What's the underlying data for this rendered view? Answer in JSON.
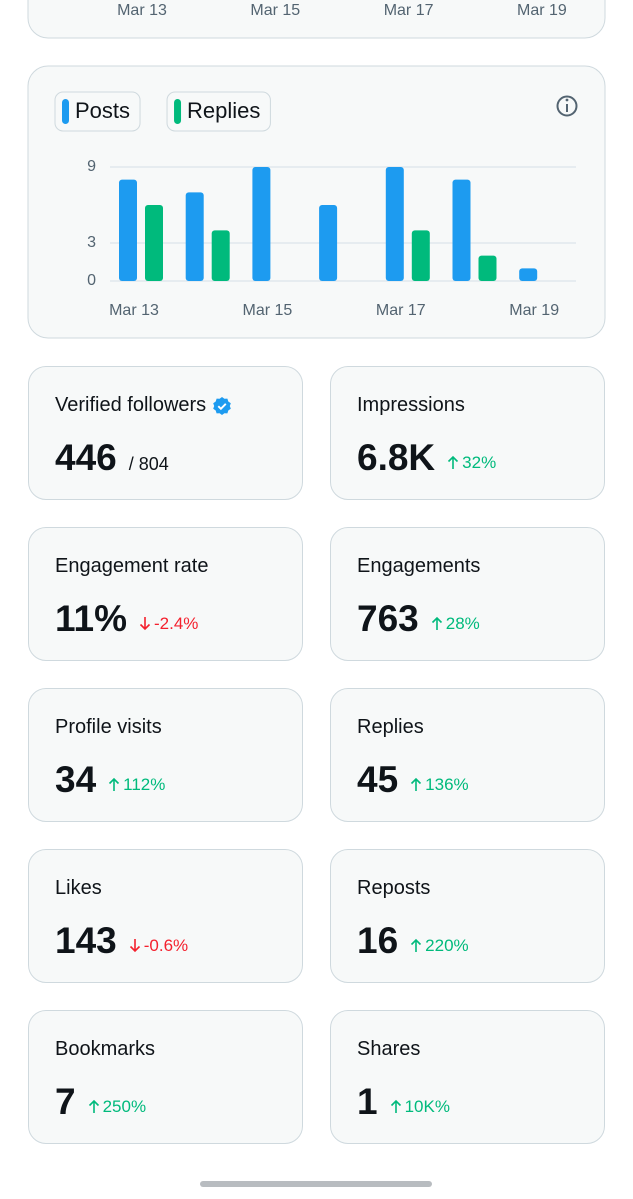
{
  "top_card": {
    "x_labels": [
      "Mar 13",
      "Mar 15",
      "Mar 17",
      "Mar 19"
    ]
  },
  "chart_data": {
    "type": "bar",
    "categories": [
      "Mar 13",
      null,
      "Mar 15",
      null,
      "Mar 17",
      null,
      "Mar 19"
    ],
    "series": [
      {
        "name": "Posts",
        "color": "#1d9bf0",
        "values": [
          8,
          7,
          9,
          6,
          9,
          8,
          1
        ]
      },
      {
        "name": "Replies",
        "color": "#00ba7c",
        "values": [
          6,
          4,
          0,
          0,
          4,
          2,
          0
        ]
      }
    ],
    "ylim": [
      0,
      9
    ],
    "yticks": [
      0,
      3,
      9
    ],
    "grid": true
  },
  "stats": [
    {
      "label": "Verified followers",
      "value": "446",
      "total": "/ 804"
    },
    {
      "label": "Impressions",
      "value": "6.8K",
      "change": "32%"
    },
    {
      "label": "Engagement rate",
      "value": "11%",
      "change": "-2.4%"
    },
    {
      "label": "Engagements",
      "value": "763",
      "change": "28%"
    },
    {
      "label": "Profile visits",
      "value": "34",
      "change": "112%"
    },
    {
      "label": "Replies",
      "value": "45",
      "change": "136%"
    },
    {
      "label": "Likes",
      "value": "143",
      "change": "-0.6%"
    },
    {
      "label": "Reposts",
      "value": "16",
      "change": "220%"
    },
    {
      "label": "Bookmarks",
      "value": "7",
      "change": "250%"
    },
    {
      "label": "Shares",
      "value": "1",
      "change": "10K%"
    }
  ]
}
